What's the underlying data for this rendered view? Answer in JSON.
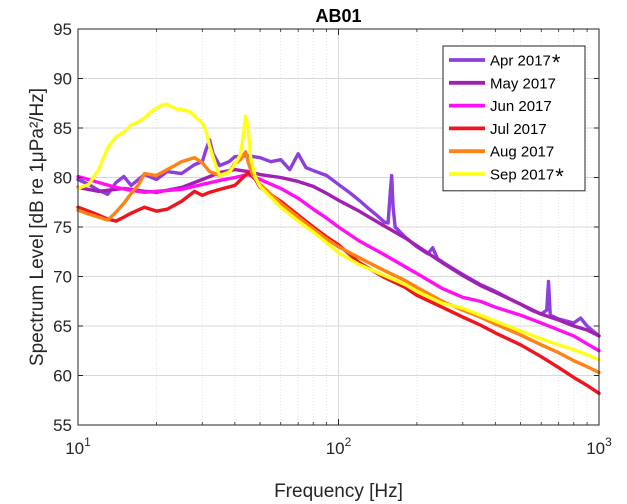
{
  "chart_data": {
    "type": "line",
    "title": "AB01",
    "xlabel": "Frequency [Hz]",
    "ylabel": "Spectrum Level [dB re 1μPa²/Hz]",
    "xscale": "log",
    "xlim": [
      10,
      1000
    ],
    "ylim": [
      55,
      95
    ],
    "grid": true,
    "legend_position": "top-right",
    "x_ticks": [
      {
        "value": 10,
        "base": "10",
        "exp": "1"
      },
      {
        "value": 100,
        "base": "10",
        "exp": "2"
      },
      {
        "value": 1000,
        "base": "10",
        "exp": "3"
      }
    ],
    "y_ticks": [
      55,
      60,
      65,
      70,
      75,
      80,
      85,
      90,
      95
    ],
    "series": [
      {
        "name": "Apr 2017",
        "color": "#8c3fdc",
        "marker": "*",
        "points": [
          [
            10,
            79.8
          ],
          [
            11,
            79.3
          ],
          [
            12,
            78.7
          ],
          [
            13,
            78.3
          ],
          [
            14,
            79.5
          ],
          [
            15,
            80.1
          ],
          [
            16,
            79.2
          ],
          [
            18,
            80.3
          ],
          [
            20,
            79.8
          ],
          [
            22,
            80.6
          ],
          [
            25,
            80.4
          ],
          [
            28,
            81.3
          ],
          [
            30,
            81.6
          ],
          [
            31,
            82.8
          ],
          [
            32,
            83.8
          ],
          [
            33,
            82.4
          ],
          [
            35,
            81.2
          ],
          [
            38,
            81.6
          ],
          [
            40,
            82.1
          ],
          [
            45,
            82.2
          ],
          [
            50,
            82.0
          ],
          [
            55,
            81.6
          ],
          [
            60,
            81.8
          ],
          [
            65,
            80.8
          ],
          [
            70,
            82.4
          ],
          [
            75,
            81.0
          ],
          [
            80,
            80.7
          ],
          [
            90,
            80.2
          ],
          [
            100,
            79.3
          ],
          [
            110,
            78.5
          ],
          [
            120,
            77.7
          ],
          [
            130,
            76.9
          ],
          [
            140,
            76.2
          ],
          [
            150,
            75.5
          ],
          [
            155,
            75.4
          ],
          [
            158,
            78.5
          ],
          [
            160,
            80.2
          ],
          [
            162,
            77.0
          ],
          [
            165,
            75.0
          ],
          [
            180,
            74.0
          ],
          [
            200,
            73.0
          ],
          [
            220,
            72.3
          ],
          [
            230,
            72.9
          ],
          [
            240,
            71.8
          ],
          [
            260,
            71.2
          ],
          [
            300,
            70.2
          ],
          [
            350,
            69.2
          ],
          [
            400,
            68.5
          ],
          [
            450,
            67.8
          ],
          [
            500,
            67.2
          ],
          [
            550,
            66.6
          ],
          [
            600,
            66.2
          ],
          [
            630,
            66.6
          ],
          [
            640,
            69.5
          ],
          [
            650,
            66.1
          ],
          [
            700,
            65.7
          ],
          [
            800,
            65.3
          ],
          [
            850,
            65.8
          ],
          [
            900,
            65.0
          ],
          [
            1000,
            64.0
          ]
        ]
      },
      {
        "name": "May 2017",
        "color": "#a21fb3",
        "points": [
          [
            10,
            79.0
          ],
          [
            12,
            78.6
          ],
          [
            15,
            78.9
          ],
          [
            18,
            78.6
          ],
          [
            20,
            78.5
          ],
          [
            25,
            79.0
          ],
          [
            30,
            79.8
          ],
          [
            35,
            80.5
          ],
          [
            40,
            80.8
          ],
          [
            45,
            80.6
          ],
          [
            50,
            80.3
          ],
          [
            60,
            80.0
          ],
          [
            70,
            79.6
          ],
          [
            80,
            79.1
          ],
          [
            90,
            78.4
          ],
          [
            100,
            77.7
          ],
          [
            120,
            76.6
          ],
          [
            150,
            75.1
          ],
          [
            180,
            73.9
          ],
          [
            200,
            73.1
          ],
          [
            250,
            71.4
          ],
          [
            300,
            70.1
          ],
          [
            350,
            69.1
          ],
          [
            400,
            68.4
          ],
          [
            500,
            67.2
          ],
          [
            600,
            66.2
          ],
          [
            700,
            65.6
          ],
          [
            800,
            65.0
          ],
          [
            900,
            64.6
          ],
          [
            1000,
            64.0
          ]
        ]
      },
      {
        "name": "Jun 2017",
        "color": "#ff10f0",
        "points": [
          [
            10,
            80.1
          ],
          [
            12,
            79.5
          ],
          [
            14,
            79.0
          ],
          [
            16,
            78.7
          ],
          [
            18,
            78.5
          ],
          [
            20,
            78.6
          ],
          [
            25,
            78.8
          ],
          [
            30,
            79.3
          ],
          [
            35,
            79.7
          ],
          [
            40,
            80.0
          ],
          [
            45,
            80.3
          ],
          [
            50,
            79.8
          ],
          [
            60,
            78.9
          ],
          [
            70,
            77.9
          ],
          [
            80,
            76.8
          ],
          [
            90,
            75.9
          ],
          [
            100,
            75.0
          ],
          [
            120,
            73.6
          ],
          [
            150,
            72.2
          ],
          [
            180,
            71.0
          ],
          [
            200,
            70.3
          ],
          [
            250,
            68.8
          ],
          [
            300,
            67.9
          ],
          [
            350,
            67.5
          ],
          [
            400,
            66.9
          ],
          [
            500,
            66.1
          ],
          [
            600,
            65.3
          ],
          [
            700,
            64.6
          ],
          [
            800,
            64.0
          ],
          [
            900,
            63.2
          ],
          [
            1000,
            62.5
          ]
        ]
      },
      {
        "name": "Jul 2017",
        "color": "#f0141e",
        "points": [
          [
            10,
            77.0
          ],
          [
            11,
            76.6
          ],
          [
            12,
            76.2
          ],
          [
            13,
            75.8
          ],
          [
            14,
            75.6
          ],
          [
            15,
            76.0
          ],
          [
            16,
            76.4
          ],
          [
            18,
            77.0
          ],
          [
            20,
            76.6
          ],
          [
            22,
            76.8
          ],
          [
            25,
            77.6
          ],
          [
            28,
            78.6
          ],
          [
            30,
            78.2
          ],
          [
            32,
            78.5
          ],
          [
            35,
            78.8
          ],
          [
            40,
            79.2
          ],
          [
            43,
            80.0
          ],
          [
            45,
            80.5
          ],
          [
            48,
            79.8
          ],
          [
            50,
            79.0
          ],
          [
            60,
            77.6
          ],
          [
            70,
            76.2
          ],
          [
            80,
            75.0
          ],
          [
            90,
            74.0
          ],
          [
            100,
            73.2
          ],
          [
            120,
            71.4
          ],
          [
            150,
            69.9
          ],
          [
            180,
            68.9
          ],
          [
            200,
            68.1
          ],
          [
            250,
            66.9
          ],
          [
            300,
            65.9
          ],
          [
            350,
            65.1
          ],
          [
            400,
            64.3
          ],
          [
            500,
            63.1
          ],
          [
            600,
            61.9
          ],
          [
            700,
            60.8
          ],
          [
            800,
            59.8
          ],
          [
            900,
            59.0
          ],
          [
            1000,
            58.2
          ]
        ]
      },
      {
        "name": "Aug 2017",
        "color": "#ff8214",
        "points": [
          [
            10,
            76.7
          ],
          [
            11,
            76.3
          ],
          [
            12,
            76.0
          ],
          [
            13,
            75.7
          ],
          [
            14,
            76.5
          ],
          [
            15,
            77.4
          ],
          [
            16,
            78.4
          ],
          [
            17,
            79.2
          ],
          [
            18,
            80.4
          ],
          [
            20,
            80.2
          ],
          [
            22,
            80.8
          ],
          [
            25,
            81.6
          ],
          [
            28,
            82.0
          ],
          [
            30,
            81.5
          ],
          [
            32,
            80.6
          ],
          [
            35,
            80.2
          ],
          [
            38,
            80.6
          ],
          [
            40,
            81.4
          ],
          [
            42,
            81.8
          ],
          [
            44,
            82.6
          ],
          [
            45,
            81.5
          ],
          [
            47,
            80.2
          ],
          [
            50,
            79.3
          ],
          [
            60,
            77.4
          ],
          [
            70,
            76.0
          ],
          [
            80,
            74.8
          ],
          [
            90,
            73.8
          ],
          [
            100,
            73.0
          ],
          [
            120,
            71.9
          ],
          [
            150,
            70.6
          ],
          [
            180,
            69.6
          ],
          [
            200,
            68.9
          ],
          [
            250,
            67.5
          ],
          [
            300,
            66.6
          ],
          [
            350,
            65.9
          ],
          [
            400,
            65.2
          ],
          [
            500,
            64.1
          ],
          [
            600,
            63.1
          ],
          [
            700,
            62.3
          ],
          [
            800,
            61.5
          ],
          [
            900,
            60.9
          ],
          [
            1000,
            60.3
          ]
        ]
      },
      {
        "name": "Sep 2017",
        "color": "#ffff19",
        "marker": "*",
        "points": [
          [
            10,
            78.9
          ],
          [
            11,
            79.3
          ],
          [
            12,
            80.8
          ],
          [
            13,
            83.0
          ],
          [
            14,
            84.1
          ],
          [
            15,
            84.6
          ],
          [
            16,
            85.3
          ],
          [
            17,
            85.6
          ],
          [
            18,
            86.0
          ],
          [
            19,
            86.6
          ],
          [
            20,
            87.0
          ],
          [
            21,
            87.3
          ],
          [
            22,
            87.4
          ],
          [
            23,
            87.1
          ],
          [
            24,
            86.9
          ],
          [
            25,
            86.9
          ],
          [
            27,
            86.6
          ],
          [
            28,
            86.2
          ],
          [
            30,
            85.5
          ],
          [
            31,
            84.7
          ],
          [
            32,
            83.2
          ],
          [
            34,
            81.0
          ],
          [
            35,
            80.2
          ],
          [
            38,
            80.5
          ],
          [
            40,
            81.3
          ],
          [
            42,
            82.3
          ],
          [
            43,
            84.0
          ],
          [
            44,
            86.2
          ],
          [
            45,
            85.0
          ],
          [
            46,
            82.0
          ],
          [
            48,
            80.0
          ],
          [
            50,
            79.1
          ],
          [
            60,
            77.0
          ],
          [
            70,
            75.6
          ],
          [
            80,
            74.5
          ],
          [
            90,
            73.4
          ],
          [
            100,
            72.4
          ],
          [
            120,
            71.2
          ],
          [
            150,
            70.1
          ],
          [
            180,
            69.2
          ],
          [
            200,
            68.5
          ],
          [
            250,
            67.3
          ],
          [
            300,
            66.8
          ],
          [
            350,
            66.1
          ],
          [
            400,
            65.5
          ],
          [
            500,
            64.5
          ],
          [
            600,
            63.7
          ],
          [
            700,
            63.1
          ],
          [
            800,
            62.6
          ],
          [
            900,
            62.1
          ],
          [
            1000,
            61.6
          ]
        ]
      }
    ]
  }
}
